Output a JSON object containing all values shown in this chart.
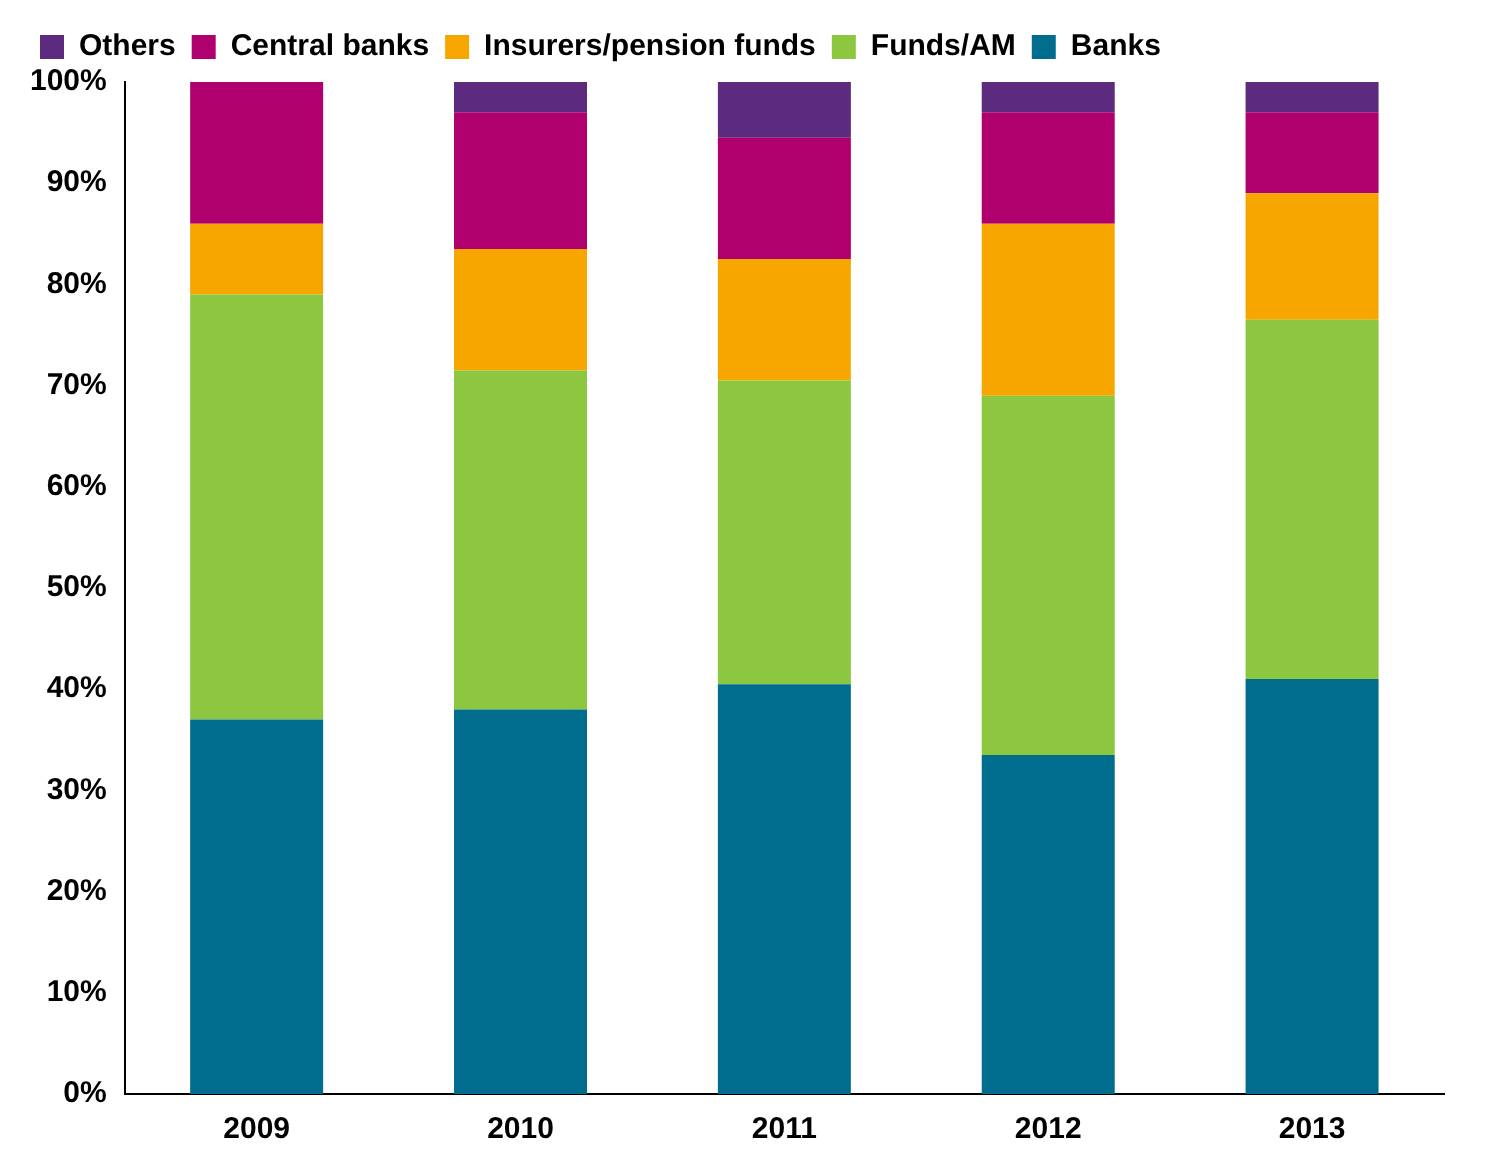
{
  "chart_data": {
    "type": "bar",
    "stacked": true,
    "categories": [
      "2009",
      "2010",
      "2011",
      "2012",
      "2013"
    ],
    "series": [
      {
        "name": "Banks",
        "color": "#006d8f",
        "values": [
          37,
          38,
          40.5,
          33.5,
          41
        ]
      },
      {
        "name": "Funds/AM",
        "color": "#8dc63f",
        "values": [
          42,
          33.5,
          30,
          35.5,
          35.5
        ]
      },
      {
        "name": "Insurers/pension funds",
        "color": "#f7a600",
        "values": [
          7,
          12,
          12,
          17,
          12.5
        ]
      },
      {
        "name": "Central banks",
        "color": "#b0006e",
        "values": [
          14,
          13.5,
          12,
          11,
          8
        ]
      },
      {
        "name": "Others",
        "color": "#5c2a7e",
        "values": [
          0,
          3,
          5.5,
          3,
          3
        ]
      }
    ],
    "ylim": [
      0,
      100
    ],
    "yticks": [
      {
        "value": 0,
        "label": "0%"
      },
      {
        "value": 10,
        "label": "10%"
      },
      {
        "value": 20,
        "label": "20%"
      },
      {
        "value": 30,
        "label": "30%"
      },
      {
        "value": 40,
        "label": "40%"
      },
      {
        "value": 50,
        "label": "50%"
      },
      {
        "value": 60,
        "label": "60%"
      },
      {
        "value": 70,
        "label": "70%"
      },
      {
        "value": 80,
        "label": "80%"
      },
      {
        "value": 90,
        "label": "90%"
      },
      {
        "value": 100,
        "label": "100%"
      }
    ],
    "grid": false,
    "legend": "top"
  }
}
